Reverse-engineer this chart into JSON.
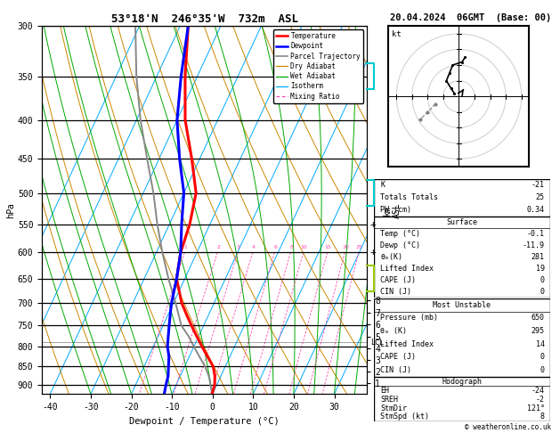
{
  "title_main": "53°18'N  246°35'W  732m  ASL",
  "title_right": "20.04.2024  06GMT  (Base: 00)",
  "xlabel": "Dewpoint / Temperature (°C)",
  "ylabel_left": "hPa",
  "pressure_levels": [
    300,
    350,
    400,
    450,
    500,
    550,
    600,
    650,
    700,
    750,
    800,
    850,
    900
  ],
  "xlim": [
    -42,
    38
  ],
  "p_min": 300,
  "p_max": 925,
  "temp_data": {
    "pressure": [
      925,
      900,
      875,
      850,
      825,
      800,
      775,
      750,
      725,
      700,
      650,
      600,
      550,
      500,
      450,
      400,
      350,
      300
    ],
    "temperature": [
      -0.1,
      -0.5,
      -1.5,
      -3.0,
      -5.5,
      -8.0,
      -10.5,
      -13.0,
      -15.5,
      -18.0,
      -22.0,
      -24.0,
      -25.0,
      -27.0,
      -32.0,
      -38.0,
      -43.0,
      -48.0
    ]
  },
  "dewpoint_data": {
    "pressure": [
      925,
      900,
      875,
      850,
      825,
      800,
      775,
      750,
      725,
      700,
      650,
      600,
      550,
      500,
      450,
      400,
      350,
      300
    ],
    "dewpoint": [
      -11.9,
      -12.5,
      -13.0,
      -14.0,
      -15.0,
      -16.5,
      -17.5,
      -18.5,
      -19.5,
      -20.5,
      -22.0,
      -24.0,
      -27.0,
      -30.0,
      -35.0,
      -40.0,
      -44.0,
      -48.0
    ]
  },
  "parcel_data": {
    "pressure": [
      925,
      900,
      875,
      850,
      825,
      800,
      775,
      750,
      700,
      650,
      600,
      550,
      500,
      450,
      400,
      350,
      300
    ],
    "temperature": [
      -0.1,
      -1.5,
      -3.0,
      -5.0,
      -7.5,
      -10.0,
      -12.5,
      -15.5,
      -19.5,
      -24.0,
      -28.5,
      -33.0,
      -37.5,
      -43.0,
      -49.0,
      -55.0,
      -61.0
    ]
  },
  "isotherm_color": "#00AAFF",
  "dry_adiabat_color": "#CC8800",
  "wet_adiabat_color": "#00AA00",
  "mixing_ratio_color": "#FF44AA",
  "temperature_color": "#FF0000",
  "dewpoint_color": "#0000FF",
  "parcel_color": "#888888",
  "lcl_pressure": 790,
  "mixing_ratio_values": [
    1,
    2,
    3,
    4,
    6,
    8,
    10,
    15,
    20,
    25
  ],
  "skew_factor": 42,
  "info_K": "-21",
  "info_TT": "25",
  "info_PW": "0.34",
  "surf_temp": "-0.1",
  "surf_dewp": "-11.9",
  "surf_thetae": "281",
  "surf_li": "19",
  "surf_cape": "0",
  "surf_cin": "0",
  "mu_pressure": "650",
  "mu_thetae": "295",
  "mu_li": "14",
  "mu_cape": "0",
  "mu_cin": "0",
  "hodo_EH": "-24",
  "hodo_SREH": "-2",
  "hodo_StmDir": "121°",
  "hodo_StmSpd": "8"
}
